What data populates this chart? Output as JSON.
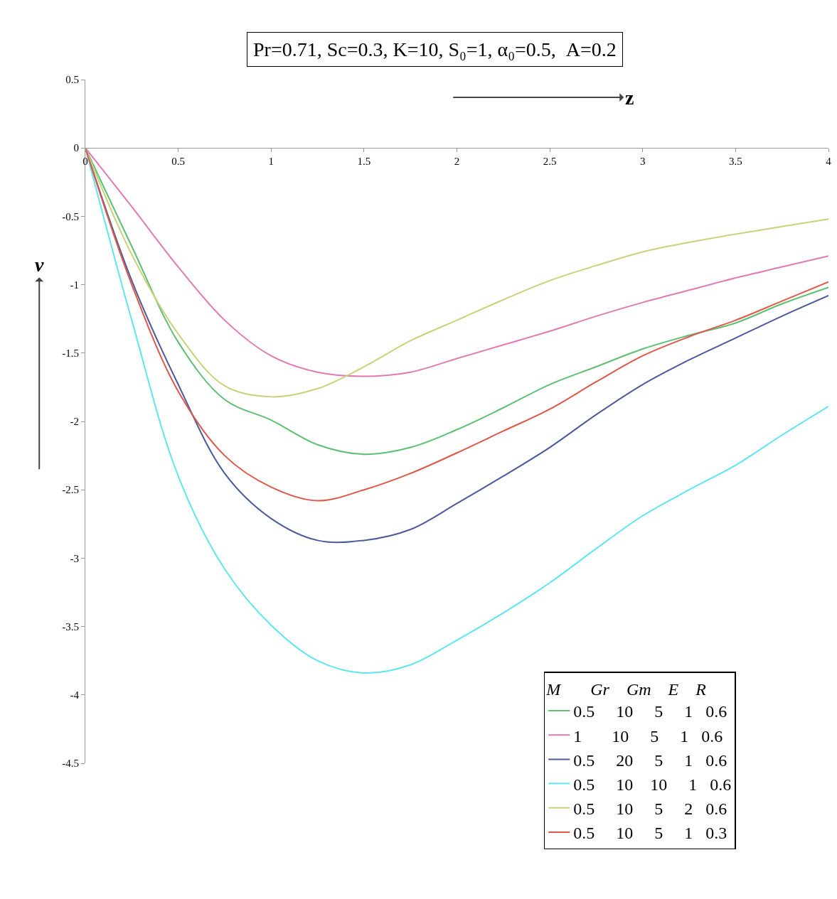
{
  "chart_data": {
    "type": "line",
    "title": "Pr=0.71, Sc=0.3, K=10, S₀=1, α₀=0.5,  A=0.2",
    "xlabel": "z",
    "ylabel": "v",
    "legend_title": "M       Gr    Gm    E    R",
    "x": [
      0,
      0.25,
      0.5,
      0.75,
      1,
      1.25,
      1.5,
      1.75,
      2,
      2.25,
      2.5,
      2.75,
      3,
      3.25,
      3.5,
      3.75,
      4
    ],
    "xlim": [
      0,
      4
    ],
    "xticks": [
      0,
      0.5,
      1,
      1.5,
      2,
      2.5,
      3,
      3.5,
      4
    ],
    "ylim": [
      -4.5,
      0.5
    ],
    "yticks": [
      -4.5,
      -4,
      -3.5,
      -3,
      -2.5,
      -2,
      -1.5,
      -1,
      -0.5,
      0,
      0.5
    ],
    "grid": false,
    "legend": "bottom right",
    "marker": "none",
    "line_style": "solid",
    "series": [
      {
        "name": "0.5     10     5     1   0.6",
        "color": "#5cbf72",
        "values": [
          0,
          -0.72,
          -1.42,
          -1.84,
          -1.99,
          -2.17,
          -2.24,
          -2.19,
          -2.06,
          -1.9,
          -1.73,
          -1.6,
          -1.47,
          -1.37,
          -1.28,
          -1.14,
          -1.02
        ]
      },
      {
        "name": "1       10     5     1   0.6",
        "color": "#e07ab0",
        "values": [
          0,
          -0.43,
          -0.87,
          -1.26,
          -1.52,
          -1.64,
          -1.67,
          -1.64,
          -1.54,
          -1.44,
          -1.34,
          -1.23,
          -1.13,
          -1.04,
          -0.95,
          -0.87,
          -0.79
        ]
      },
      {
        "name": "0.5     20     5     1   0.6",
        "color": "#4a5a9a",
        "values": [
          0,
          -0.97,
          -1.73,
          -2.38,
          -2.71,
          -2.87,
          -2.87,
          -2.79,
          -2.6,
          -2.4,
          -2.19,
          -1.95,
          -1.73,
          -1.55,
          -1.39,
          -1.23,
          -1.08
        ]
      },
      {
        "name": "0.5     10    10     1   0.6",
        "color": "#5ee6f0",
        "values": [
          0,
          -1.26,
          -2.4,
          -3.08,
          -3.49,
          -3.75,
          -3.84,
          -3.78,
          -3.6,
          -3.4,
          -3.18,
          -2.93,
          -2.69,
          -2.5,
          -2.32,
          -2.1,
          -1.89
        ]
      },
      {
        "name": "0.5     10     5     2   0.6",
        "color": "#c8d27a",
        "values": [
          0,
          -0.78,
          -1.36,
          -1.74,
          -1.82,
          -1.76,
          -1.6,
          -1.41,
          -1.26,
          -1.11,
          -0.97,
          -0.86,
          -0.76,
          -0.69,
          -0.63,
          -0.575,
          -0.52
        ]
      },
      {
        "name": "0.5     10     5     1   0.3",
        "color": "#e0574a",
        "values": [
          0,
          -1.0,
          -1.78,
          -2.25,
          -2.48,
          -2.58,
          -2.5,
          -2.38,
          -2.23,
          -2.07,
          -1.91,
          -1.71,
          -1.52,
          -1.38,
          -1.26,
          -1.12,
          -0.98
        ]
      }
    ]
  }
}
